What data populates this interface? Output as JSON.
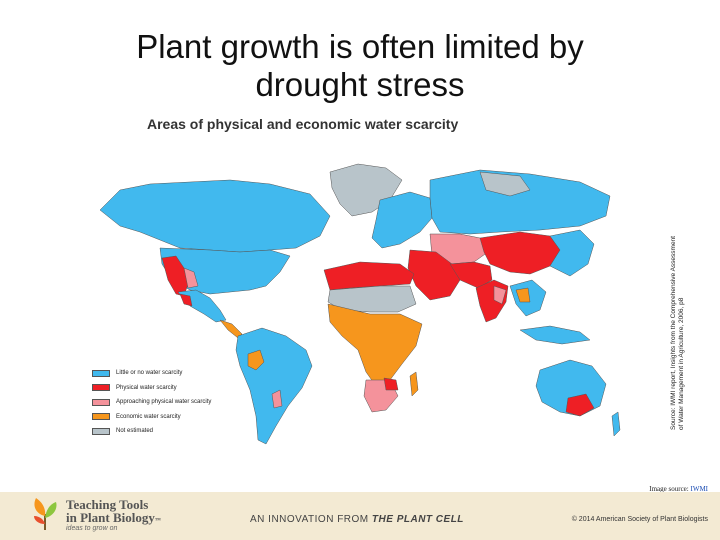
{
  "slide": {
    "title_line1": "Plant growth is often limited by",
    "title_line2": "drought stress"
  },
  "map": {
    "title": "Areas of physical and economic water scarcity",
    "colors": {
      "little": "#41b9ee",
      "physical": "#ee1f25",
      "approaching": "#f4929b",
      "economic": "#f6961d",
      "not_estimated": "#b8c4ca"
    },
    "legend": [
      {
        "label": "Little or no water scarcity",
        "color": "#41b9ee"
      },
      {
        "label": "Physical water scarcity",
        "color": "#ee1f25"
      },
      {
        "label": "Approaching physical water scarcity",
        "color": "#f4929b"
      },
      {
        "label": "Economic water scarcity",
        "color": "#f6961d"
      },
      {
        "label": "Not estimated",
        "color": "#b8c4ca"
      }
    ]
  },
  "source_note": "Source: IWMI report, Insights from the Comprehensive Assessment of Water Management in Agriculture, 2006, p8",
  "image_source": {
    "prefix": "Image source: ",
    "link_text": "IWMI"
  },
  "footer": {
    "logo_line1": "Teaching Tools",
    "logo_line2": "in Plant Biology",
    "logo_tm": "™",
    "tagline": "ideas to grow on",
    "center_prefix": "AN INNOVATION FROM ",
    "center_brand": "THE PLANT CELL",
    "copyright": "© 2014 American Society of Plant Biologists"
  }
}
